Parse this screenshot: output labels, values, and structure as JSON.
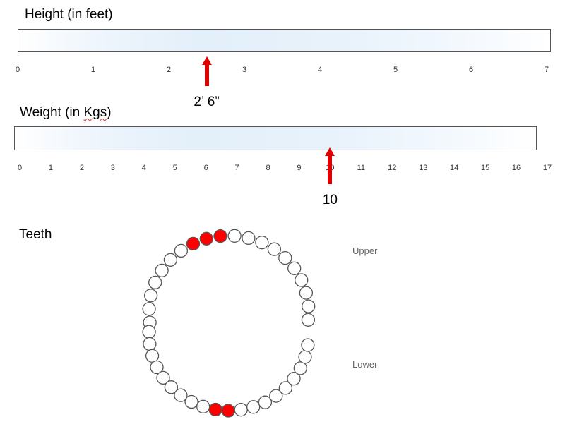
{
  "height": {
    "title": "Height (in feet)",
    "ticks": [
      "0",
      "1",
      "2",
      "3",
      "4",
      "5",
      "6",
      "7"
    ],
    "marker_value": 2.5,
    "marker_label": "2’ 6”"
  },
  "weight": {
    "title_plain": "Weight (in ",
    "title_flagged": "Kgs",
    "title_close": ")",
    "ticks": [
      "0",
      "1",
      "2",
      "3",
      "4",
      "5",
      "6",
      "7",
      "8",
      "9",
      "10",
      "11",
      "12",
      "13",
      "14",
      "15",
      "16",
      "17"
    ],
    "marker_value": 10,
    "marker_label": "10"
  },
  "teeth": {
    "title": "Teeth",
    "upper_label": "Upper",
    "lower_label": "Lower",
    "upper_count": 20,
    "lower_count": 20,
    "upper_highlighted": [
      7,
      8,
      9
    ],
    "lower_highlighted": [
      9,
      10
    ],
    "highlight_color": "#ff0000",
    "tooth_fill": "#ffffff",
    "tooth_stroke": "#555555"
  },
  "colors": {
    "arrow": "#e00000"
  }
}
